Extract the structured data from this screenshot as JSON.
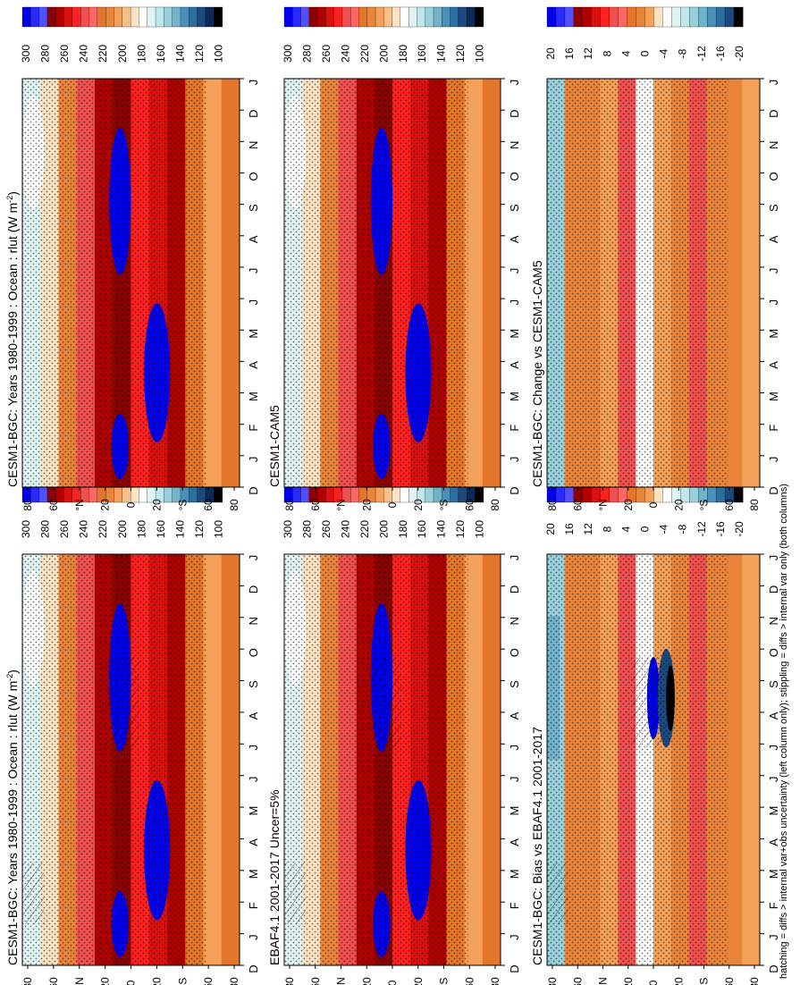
{
  "footnote": "hatching = diffs > internal var+obs uncertainty (left column only); stippling = diffs > internal var only (both columns)",
  "lat_ticks": [
    "D",
    "J",
    "F",
    "M",
    "A",
    "M",
    "J",
    "J",
    "A",
    "S",
    "O",
    "N",
    "D",
    "J"
  ],
  "lat_labels": [
    "80",
    "60",
    "°N",
    "20",
    "0",
    "20",
    "°S",
    "60",
    "80"
  ],
  "abs_colorbar": {
    "labels": [
      "300",
      "280",
      "260",
      "240",
      "220",
      "200",
      "180",
      "160",
      "140",
      "120",
      "100"
    ],
    "colors": [
      "#0000ee",
      "#2a2aff",
      "#5050ff",
      "#8b0000",
      "#b00000",
      "#dd1010",
      "#ff2020",
      "#f05050",
      "#ff6666",
      "#e4762a",
      "#e8853a",
      "#f4a058",
      "#f6c088",
      "#fbe2c2",
      "#ffffff",
      "#e0f4f4",
      "#c0e8ec",
      "#98d0dc",
      "#70b4cc",
      "#4a90b8",
      "#2d6ea0",
      "#1c4a80",
      "#0a2a58",
      "#000000"
    ]
  },
  "diff_colorbar": {
    "labels": [
      "20",
      "16",
      "12",
      "8",
      "4",
      "0",
      "-4",
      "-8",
      "-12",
      "-16",
      "-20"
    ],
    "colors": [
      "#0000ee",
      "#2a2aff",
      "#5050ff",
      "#8b0000",
      "#b00000",
      "#dd1010",
      "#ff2020",
      "#f05050",
      "#ff6666",
      "#e4762a",
      "#e8853a",
      "#f4a058",
      "#fbe2c2",
      "#ffffff",
      "#e0f4f4",
      "#c0e8ec",
      "#98d0dc",
      "#70b4cc",
      "#4a90b8",
      "#2d6ea0",
      "#1c4a80",
      "#000000"
    ]
  },
  "panels": [
    {
      "id": "model-clim",
      "title": "CESM1-BGC: Years 1980-1999 : Ocean : rlut (W m",
      "title_sup": "-2",
      "title_end": ")",
      "kind": "abs",
      "hatched": true
    },
    {
      "id": "model-clim-2",
      "title": "CESM1-BGC: Years 1980-1999 : Ocean : rlut (W m",
      "title_sup": "-2",
      "title_end": ")",
      "kind": "abs",
      "hatched": false
    },
    {
      "id": "obs",
      "title": "EBAF4.1 2001-2017 Uncer=5%",
      "title_sup": "",
      "title_end": "",
      "kind": "abs",
      "hatched": true
    },
    {
      "id": "cmip5",
      "title": "CESM1-CAM5",
      "title_sup": "",
      "title_end": "",
      "kind": "abs",
      "hatched": false
    },
    {
      "id": "bias",
      "title": "CESM1-BGC: Bias vs EBAF4.1 2001-2017",
      "title_sup": "",
      "title_end": "",
      "kind": "bias",
      "hatched": true
    },
    {
      "id": "change",
      "title": "CESM1-BGC: Change vs CESM1-CAM5",
      "title_sup": "",
      "title_end": "",
      "kind": "change",
      "hatched": false
    }
  ],
  "chart_data": {
    "type": "heatmap",
    "variable": "rlut",
    "units": "W m-2",
    "x_axis": [
      "D",
      "J",
      "F",
      "M",
      "A",
      "M",
      "J",
      "J",
      "A",
      "S",
      "O",
      "N",
      "D",
      "J"
    ],
    "y_axis": [
      "80",
      "60",
      "°N",
      "20",
      "0",
      "20",
      "°S",
      "60",
      "80"
    ],
    "abs_colorbar_levels": [
      300,
      280,
      260,
      240,
      220,
      200,
      180,
      160,
      140,
      120,
      100
    ],
    "diff_colorbar_levels": [
      20,
      16,
      12,
      8,
      4,
      0,
      -4,
      -8,
      -12,
      -16,
      -20
    ]
  }
}
